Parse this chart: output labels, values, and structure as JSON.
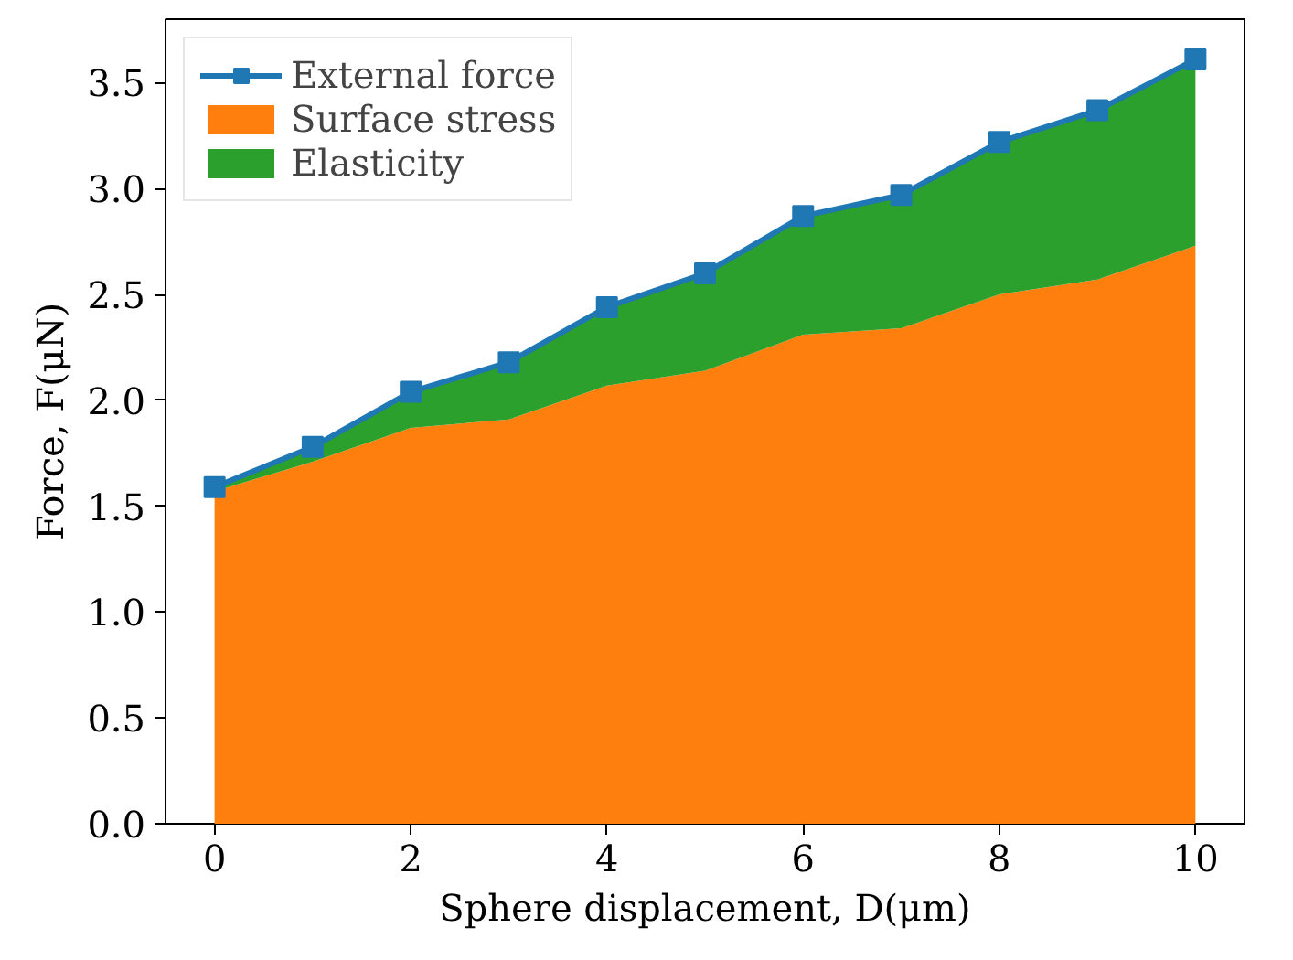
{
  "chart_data": {
    "type": "area",
    "stacked": true,
    "xlabel": "Sphere displacement, D(μm)",
    "ylabel": "Force, F(μN)",
    "x": [
      0,
      1,
      2,
      3,
      4,
      5,
      6,
      7,
      8,
      9,
      10
    ],
    "series": [
      {
        "name": "External force",
        "type": "line",
        "color": "#1f77b4",
        "marker": "square",
        "values": [
          1.59,
          1.78,
          2.04,
          2.18,
          2.44,
          2.6,
          2.87,
          2.97,
          3.22,
          3.37,
          3.61
        ]
      },
      {
        "name": "Surface stress",
        "color": "#ff7f0e",
        "values": [
          1.57,
          1.71,
          1.87,
          1.91,
          2.07,
          2.14,
          2.31,
          2.34,
          2.5,
          2.57,
          2.73
        ]
      },
      {
        "name": "Elasticity",
        "color": "#2ca02c",
        "values": [
          0.02,
          0.07,
          0.17,
          0.27,
          0.37,
          0.46,
          0.56,
          0.63,
          0.72,
          0.8,
          0.88
        ]
      }
    ],
    "xlim": [
      -0.5,
      10.5
    ],
    "ylim": [
      0,
      3.8
    ],
    "xticks": [
      0,
      2,
      4,
      6,
      8,
      10
    ],
    "yticks": [
      {
        "value": 0,
        "label": "0.0"
      },
      0.5,
      {
        "value": 1,
        "label": "1.0"
      },
      1.5,
      {
        "value": 2,
        "label": "2.0"
      },
      2.5,
      {
        "value": 3,
        "label": "3.0"
      },
      3.5
    ],
    "legend": "top left",
    "grid": false
  }
}
